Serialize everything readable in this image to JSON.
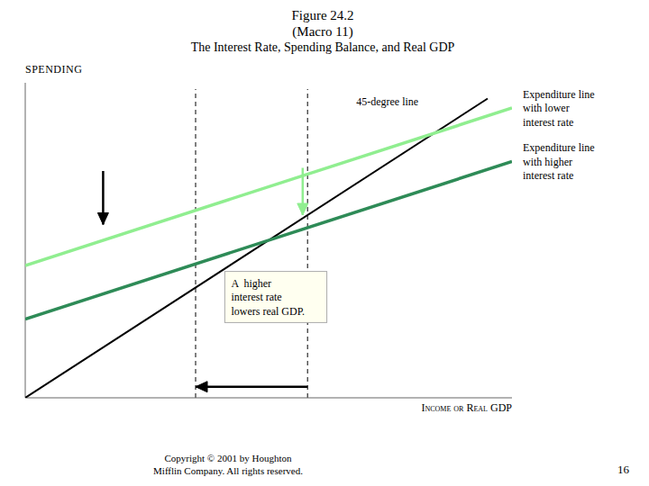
{
  "chart_data": {
    "type": "line",
    "title": "Figure 24.2\n(Macro 11)",
    "subtitle": "The Interest Rate, Spending Balance, and Real GDP",
    "x_label": "Income or Real GDP",
    "y_label": "SPENDING",
    "xlim": [
      0,
      10
    ],
    "ylim": [
      0,
      10
    ],
    "xticks": [],
    "yticks": [],
    "tick_labels": false,
    "grid": false,
    "series": [
      {
        "name": "45-degree line",
        "color": "#000000",
        "x": [
          0,
          9.5
        ],
        "values": [
          0,
          9.5
        ],
        "label_at": {
          "x": 6.8,
          "y": 9.2
        }
      },
      {
        "name": "Expenditure line\nwith lower\ninterest rate",
        "color": "#90EE90",
        "x": [
          0,
          10
        ],
        "values": [
          4.2,
          9.2
        ]
      },
      {
        "name": "Expenditure line\nwith higher\ninterest rate",
        "color": "#2E8B57",
        "x": [
          0,
          10
        ],
        "values": [
          2.5,
          7.5
        ]
      }
    ],
    "reference_lines": [
      {
        "x": 3.5,
        "y": [
          0,
          9.8
        ],
        "color": "#000000",
        "line_style": "dashed"
      },
      {
        "x": 5.8,
        "y": [
          0,
          9.8
        ],
        "color": "#000000",
        "line_style": "dashed"
      }
    ],
    "arrows": [
      {
        "x": [
          1.6,
          1.6
        ],
        "y": [
          7.2,
          5.5
        ],
        "color": "#000000"
      },
      {
        "x": [
          5.7,
          5.7
        ],
        "y": [
          7.3,
          5.8
        ],
        "color": "#90EE90"
      },
      {
        "x": [
          5.8,
          3.5
        ],
        "y": [
          0.35,
          0.35
        ],
        "color": "#000000"
      }
    ],
    "annotations": [
      {
        "text": "A  higher\ninterest rate\nlowers real GDP.",
        "x": 4.1,
        "y": 3.2
      }
    ],
    "footer": "Copyright © 2001 by Houghton\nMifflin Company. All rights reserved.",
    "page_number": "16"
  }
}
